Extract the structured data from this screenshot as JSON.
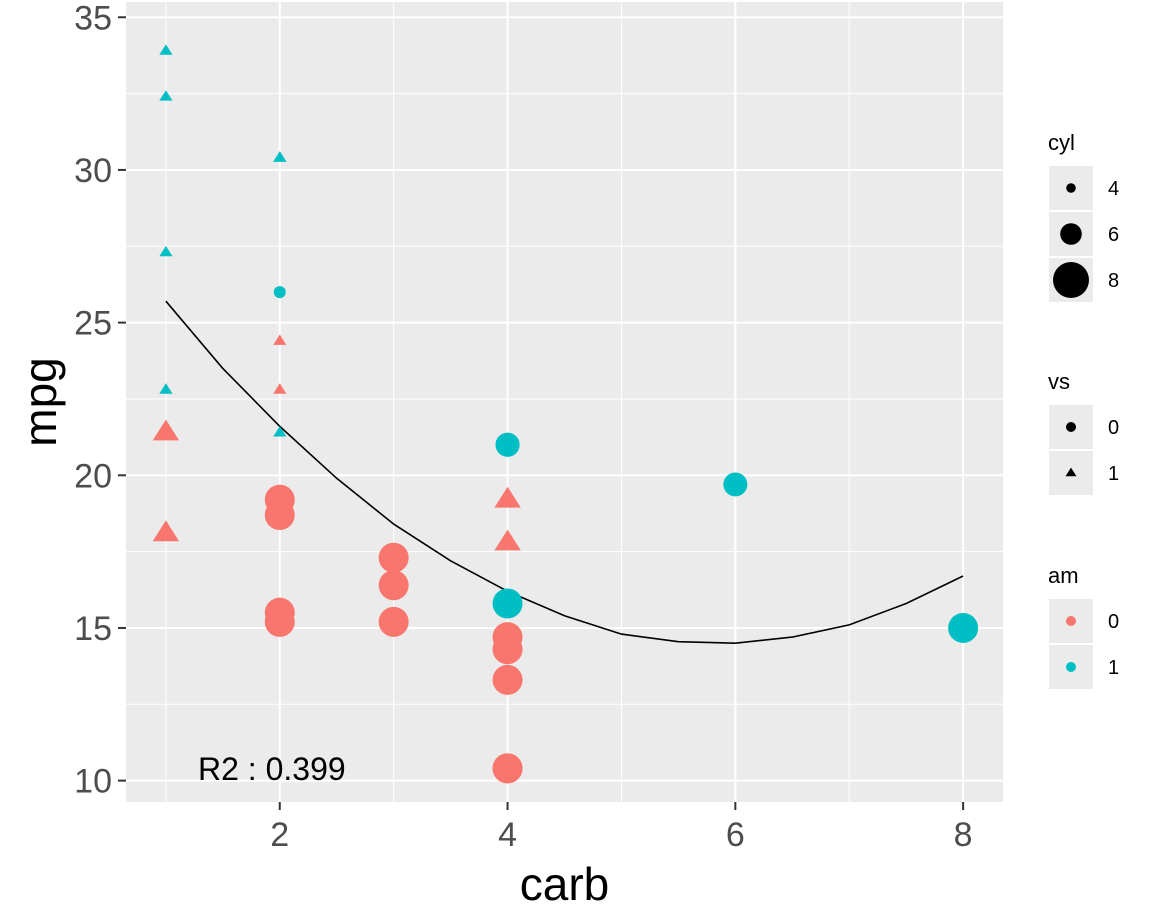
{
  "chart_data": {
    "type": "scatter",
    "title": "",
    "xlabel": "carb",
    "ylabel": "mpg",
    "xlim": [
      0.65,
      8.35
    ],
    "ylim": [
      9.3,
      35.5
    ],
    "xticks": [
      2,
      4,
      6,
      8
    ],
    "yticks": [
      10,
      15,
      20,
      25,
      30,
      35
    ],
    "grid": true,
    "legend_position": "right",
    "annotation": "R2 : 0.399",
    "colors": {
      "am0": "#F8766D",
      "am1": "#00BFC4",
      "panel": "#EBEBEB",
      "grid": "#FFFFFF",
      "line": "#000000"
    },
    "points": [
      {
        "carb": 4,
        "mpg": 21.0,
        "cyl": 6,
        "vs": 0,
        "am": 1
      },
      {
        "carb": 4,
        "mpg": 21.0,
        "cyl": 6,
        "vs": 0,
        "am": 1
      },
      {
        "carb": 1,
        "mpg": 22.8,
        "cyl": 4,
        "vs": 1,
        "am": 1
      },
      {
        "carb": 1,
        "mpg": 21.4,
        "cyl": 6,
        "vs": 1,
        "am": 0
      },
      {
        "carb": 2,
        "mpg": 18.7,
        "cyl": 8,
        "vs": 0,
        "am": 0
      },
      {
        "carb": 1,
        "mpg": 18.1,
        "cyl": 6,
        "vs": 1,
        "am": 0
      },
      {
        "carb": 4,
        "mpg": 14.3,
        "cyl": 8,
        "vs": 0,
        "am": 0
      },
      {
        "carb": 2,
        "mpg": 24.4,
        "cyl": 4,
        "vs": 1,
        "am": 0
      },
      {
        "carb": 2,
        "mpg": 22.8,
        "cyl": 4,
        "vs": 1,
        "am": 0
      },
      {
        "carb": 4,
        "mpg": 19.2,
        "cyl": 6,
        "vs": 1,
        "am": 0
      },
      {
        "carb": 4,
        "mpg": 17.8,
        "cyl": 6,
        "vs": 1,
        "am": 0
      },
      {
        "carb": 3,
        "mpg": 16.4,
        "cyl": 8,
        "vs": 0,
        "am": 0
      },
      {
        "carb": 3,
        "mpg": 17.3,
        "cyl": 8,
        "vs": 0,
        "am": 0
      },
      {
        "carb": 3,
        "mpg": 15.2,
        "cyl": 8,
        "vs": 0,
        "am": 0
      },
      {
        "carb": 4,
        "mpg": 10.4,
        "cyl": 8,
        "vs": 0,
        "am": 0
      },
      {
        "carb": 4,
        "mpg": 10.4,
        "cyl": 8,
        "vs": 0,
        "am": 0
      },
      {
        "carb": 4,
        "mpg": 14.7,
        "cyl": 8,
        "vs": 0,
        "am": 0
      },
      {
        "carb": 1,
        "mpg": 32.4,
        "cyl": 4,
        "vs": 1,
        "am": 1
      },
      {
        "carb": 2,
        "mpg": 30.4,
        "cyl": 4,
        "vs": 1,
        "am": 1
      },
      {
        "carb": 1,
        "mpg": 33.9,
        "cyl": 4,
        "vs": 1,
        "am": 1
      },
      {
        "carb": 1,
        "mpg": 21.5,
        "cyl": 4,
        "vs": 1,
        "am": 0
      },
      {
        "carb": 2,
        "mpg": 15.5,
        "cyl": 8,
        "vs": 0,
        "am": 0
      },
      {
        "carb": 2,
        "mpg": 15.2,
        "cyl": 8,
        "vs": 0,
        "am": 0
      },
      {
        "carb": 4,
        "mpg": 13.3,
        "cyl": 8,
        "vs": 0,
        "am": 0
      },
      {
        "carb": 2,
        "mpg": 19.2,
        "cyl": 8,
        "vs": 0,
        "am": 0
      },
      {
        "carb": 1,
        "mpg": 27.3,
        "cyl": 4,
        "vs": 1,
        "am": 1
      },
      {
        "carb": 2,
        "mpg": 26.0,
        "cyl": 4,
        "vs": 0,
        "am": 1
      },
      {
        "carb": 2,
        "mpg": 30.4,
        "cyl": 4,
        "vs": 1,
        "am": 1
      },
      {
        "carb": 4,
        "mpg": 15.8,
        "cyl": 8,
        "vs": 0,
        "am": 1
      },
      {
        "carb": 6,
        "mpg": 19.7,
        "cyl": 6,
        "vs": 0,
        "am": 1
      },
      {
        "carb": 8,
        "mpg": 15.0,
        "cyl": 8,
        "vs": 0,
        "am": 1
      },
      {
        "carb": 2,
        "mpg": 21.4,
        "cyl": 4,
        "vs": 1,
        "am": 1
      }
    ],
    "fit_line": {
      "x": [
        1,
        1.5,
        2,
        2.5,
        3,
        3.5,
        4,
        4.5,
        5,
        5.5,
        6,
        6.5,
        7,
        7.5,
        8
      ],
      "y": [
        25.7,
        23.5,
        21.6,
        19.9,
        18.4,
        17.2,
        16.2,
        15.4,
        14.8,
        14.55,
        14.5,
        14.7,
        15.1,
        15.8,
        16.7
      ]
    },
    "legends": [
      {
        "title": "cyl",
        "kind": "size",
        "items": [
          {
            "label": "4",
            "value": 4
          },
          {
            "label": "6",
            "value": 6
          },
          {
            "label": "8",
            "value": 8
          }
        ]
      },
      {
        "title": "vs",
        "kind": "shape",
        "items": [
          {
            "label": "0",
            "value": 0
          },
          {
            "label": "1",
            "value": 1
          }
        ]
      },
      {
        "title": "am",
        "kind": "color",
        "items": [
          {
            "label": "0",
            "value": 0
          },
          {
            "label": "1",
            "value": 1
          }
        ]
      }
    ]
  }
}
